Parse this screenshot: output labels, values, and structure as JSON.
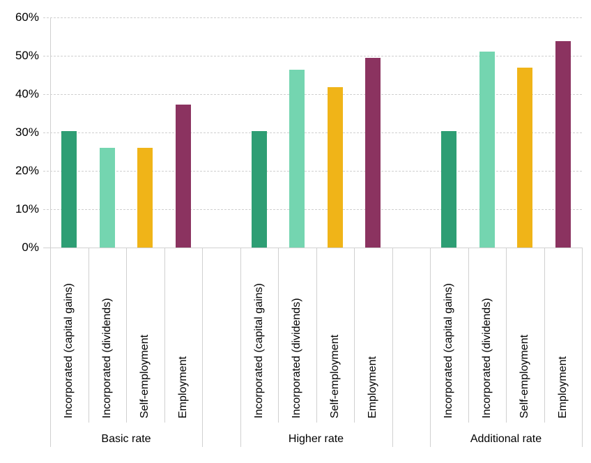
{
  "chart_data": {
    "type": "bar",
    "title": "",
    "xlabel": "",
    "ylabel": "",
    "ylim": [
      0,
      0.6
    ],
    "yticks": [
      "0%",
      "10%",
      "20%",
      "30%",
      "40%",
      "50%",
      "60%"
    ],
    "grid": true,
    "legend": "none",
    "groups": [
      {
        "label": "Basic rate",
        "categories": [
          "Incorporated (capital gains)",
          "Incorporated (dividends)",
          "Self-employment",
          "Employment"
        ],
        "values": [
          30.3,
          26.0,
          26.0,
          37.3
        ]
      },
      {
        "label": "Higher rate",
        "categories": [
          "Incorporated (capital gains)",
          "Incorporated (dividends)",
          "Self-employment",
          "Employment"
        ],
        "values": [
          30.3,
          46.3,
          41.9,
          49.5
        ]
      },
      {
        "label": "Additional rate",
        "categories": [
          "Incorporated (capital gains)",
          "Incorporated (dividends)",
          "Self-employment",
          "Employment"
        ],
        "values": [
          30.3,
          51.1,
          46.9,
          53.8
        ]
      }
    ],
    "colors": [
      "#2e9e74",
      "#74d5b0",
      "#f0b418",
      "#8b3360"
    ],
    "value_unit": "%"
  }
}
